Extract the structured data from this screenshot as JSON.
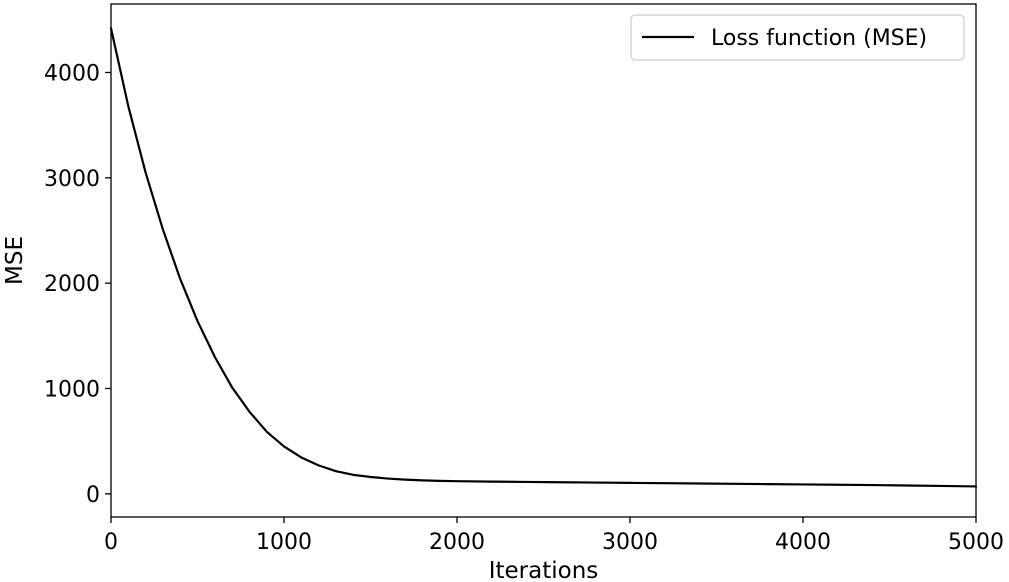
{
  "chart_data": {
    "type": "line",
    "title": "",
    "xlabel": "Iterations",
    "ylabel": "MSE",
    "xlim": [
      0,
      5000
    ],
    "ylim": [
      -220,
      4650
    ],
    "xticks": [
      0,
      1000,
      2000,
      3000,
      4000,
      5000
    ],
    "xtick_labels": [
      "0",
      "1000",
      "2000",
      "3000",
      "4000",
      "5000"
    ],
    "yticks": [
      0,
      1000,
      2000,
      3000,
      4000
    ],
    "ytick_labels": [
      "0",
      "1000",
      "2000",
      "3000",
      "4000"
    ],
    "grid": false,
    "legend_position": "top-right",
    "series": [
      {
        "name": "Loss function (MSE)",
        "color": "#000000",
        "x": [
          0,
          100,
          200,
          300,
          400,
          500,
          600,
          700,
          800,
          900,
          1000,
          1100,
          1200,
          1300,
          1400,
          1500,
          1600,
          1700,
          1800,
          1900,
          2000,
          2200,
          2400,
          2600,
          2800,
          3000,
          3200,
          3400,
          3600,
          3800,
          4000,
          4200,
          4400,
          4600,
          4800,
          5000
        ],
        "y": [
          4420,
          3680,
          3050,
          2510,
          2040,
          1640,
          1300,
          1010,
          780,
          590,
          450,
          345,
          270,
          215,
          180,
          160,
          145,
          135,
          128,
          123,
          120,
          116,
          113,
          110,
          107,
          104,
          101,
          98,
          95,
          92,
          89,
          86,
          83,
          79,
          75,
          70
        ]
      }
    ]
  }
}
